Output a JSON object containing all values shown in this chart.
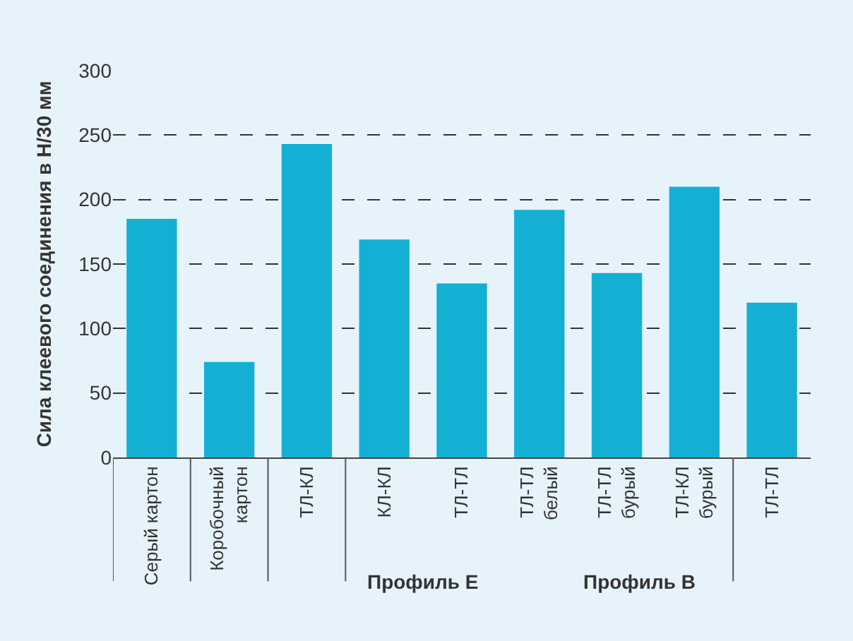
{
  "chart_data": {
    "type": "bar",
    "ylabel": "Сила клеевого соединения в Н/30 мм",
    "categories": [
      "Серый картон",
      "Коробочный\nкартон",
      "ТЛ-КЛ",
      "КЛ-КЛ",
      "ТЛ-ТЛ",
      "ТЛ-ТЛ\nбелый",
      "ТЛ-ТЛ\nбурый",
      "ТЛ-КЛ\nбурый",
      "ТЛ-ТЛ"
    ],
    "values": [
      185,
      74,
      243,
      169,
      135,
      192,
      143,
      210,
      120
    ],
    "color": "#14b0d4",
    "ylim": [
      0,
      300
    ],
    "yticks": [
      0,
      50,
      100,
      150,
      200,
      250,
      300
    ],
    "grid": "y",
    "annotations": [
      "Профиль E",
      "Профиль B"
    ]
  }
}
